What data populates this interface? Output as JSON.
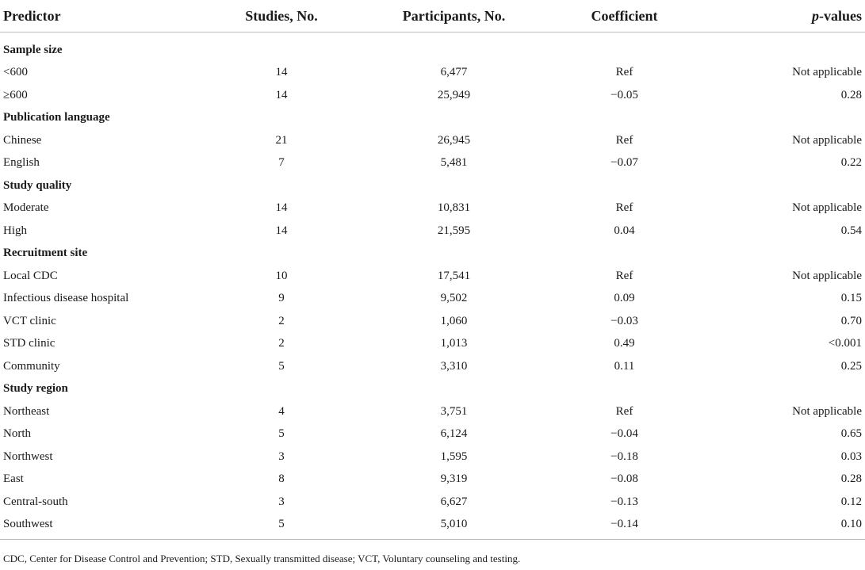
{
  "table": {
    "headers": {
      "predictor": "Predictor",
      "studies": "Studies, No.",
      "participants": "Participants, No.",
      "coefficient": "Coefficient",
      "p_prefix": "p",
      "p_suffix": "-values"
    },
    "rows": [
      {
        "type": "group",
        "label": "Sample size"
      },
      {
        "type": "data",
        "label": "<600",
        "studies": "14",
        "participants": "6,477",
        "coefficient": "Ref",
        "p": "Not applicable"
      },
      {
        "type": "data",
        "label": "≥600",
        "studies": "14",
        "participants": "25,949",
        "coefficient": "−0.05",
        "p": "0.28"
      },
      {
        "type": "group",
        "label": "Publication language"
      },
      {
        "type": "data",
        "label": "Chinese",
        "studies": "21",
        "participants": "26,945",
        "coefficient": "Ref",
        "p": "Not applicable"
      },
      {
        "type": "data",
        "label": "English",
        "studies": "7",
        "participants": "5,481",
        "coefficient": "−0.07",
        "p": "0.22"
      },
      {
        "type": "group",
        "label": "Study quality"
      },
      {
        "type": "data",
        "label": "Moderate",
        "studies": "14",
        "participants": "10,831",
        "coefficient": "Ref",
        "p": "Not applicable"
      },
      {
        "type": "data",
        "label": "High",
        "studies": "14",
        "participants": "21,595",
        "coefficient": "0.04",
        "p": "0.54"
      },
      {
        "type": "group",
        "label": "Recruitment site"
      },
      {
        "type": "data",
        "label": "Local CDC",
        "studies": "10",
        "participants": "17,541",
        "coefficient": "Ref",
        "p": "Not applicable"
      },
      {
        "type": "data",
        "label": "Infectious disease hospital",
        "studies": "9",
        "participants": "9,502",
        "coefficient": "0.09",
        "p": "0.15"
      },
      {
        "type": "data",
        "label": "VCT clinic",
        "studies": "2",
        "participants": "1,060",
        "coefficient": "−0.03",
        "p": "0.70"
      },
      {
        "type": "data",
        "label": "STD clinic",
        "studies": "2",
        "participants": "1,013",
        "coefficient": "0.49",
        "p": "<0.001"
      },
      {
        "type": "data",
        "label": "Community",
        "studies": "5",
        "participants": "3,310",
        "coefficient": "0.11",
        "p": "0.25"
      },
      {
        "type": "group",
        "label": "Study region"
      },
      {
        "type": "data",
        "label": "Northeast",
        "studies": "4",
        "participants": "3,751",
        "coefficient": "Ref",
        "p": "Not applicable"
      },
      {
        "type": "data",
        "label": "North",
        "studies": "5",
        "participants": "6,124",
        "coefficient": "−0.04",
        "p": "0.65"
      },
      {
        "type": "data",
        "label": "Northwest",
        "studies": "3",
        "participants": "1,595",
        "coefficient": "−0.18",
        "p": "0.03"
      },
      {
        "type": "data",
        "label": "East",
        "studies": "8",
        "participants": "9,319",
        "coefficient": "−0.08",
        "p": "0.28"
      },
      {
        "type": "data",
        "label": "Central-south",
        "studies": "3",
        "participants": "6,627",
        "coefficient": "−0.13",
        "p": "0.12"
      },
      {
        "type": "data",
        "label": "Southwest",
        "studies": "5",
        "participants": "5,010",
        "coefficient": "−0.14",
        "p": "0.10"
      }
    ]
  },
  "footnote": "CDC, Center for Disease Control and Prevention; STD, Sexually transmitted disease; VCT, Voluntary counseling and testing."
}
